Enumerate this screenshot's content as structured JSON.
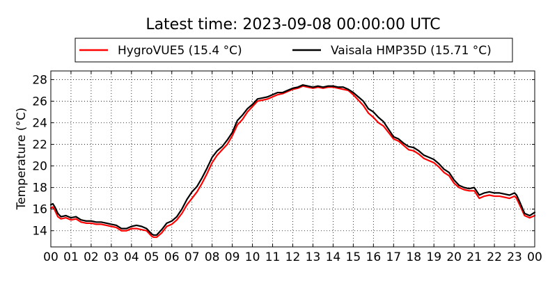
{
  "chart_data": {
    "type": "line",
    "title": "Latest time: 2023-09-08 00:00:00 UTC",
    "xlabel": "",
    "ylabel": "Temperature (°C)",
    "xlim": [
      0,
      24
    ],
    "ylim": [
      12.5,
      28.8
    ],
    "xticks": [
      0,
      1,
      2,
      3,
      4,
      5,
      6,
      7,
      8,
      9,
      10,
      11,
      12,
      13,
      14,
      15,
      16,
      17,
      18,
      19,
      20,
      21,
      22,
      23,
      24
    ],
    "xtick_labels": [
      "00",
      "01",
      "02",
      "03",
      "04",
      "05",
      "06",
      "07",
      "08",
      "09",
      "10",
      "11",
      "12",
      "13",
      "14",
      "15",
      "16",
      "17",
      "18",
      "19",
      "20",
      "21",
      "22",
      "23",
      "00"
    ],
    "yticks": [
      14,
      16,
      18,
      20,
      22,
      24,
      26,
      28
    ],
    "grid": true,
    "legend_position": "top",
    "series": [
      {
        "name": "HygroVUE5 (15.4 °C)",
        "color": "#ff0000",
        "x": [
          0,
          0.1,
          0.2,
          0.35,
          0.5,
          0.75,
          1,
          1.25,
          1.5,
          1.75,
          2,
          2.25,
          2.5,
          2.75,
          3,
          3.25,
          3.5,
          3.75,
          4,
          4.25,
          4.5,
          4.75,
          5,
          5.1,
          5.25,
          5.5,
          5.75,
          6,
          6.25,
          6.5,
          6.75,
          7,
          7.25,
          7.5,
          7.75,
          8,
          8.25,
          8.5,
          8.75,
          9,
          9.25,
          9.5,
          9.75,
          10,
          10.25,
          10.5,
          10.75,
          11,
          11.25,
          11.5,
          11.75,
          12,
          12.25,
          12.5,
          12.75,
          13,
          13.25,
          13.5,
          13.75,
          14,
          14.25,
          14.5,
          14.75,
          15,
          15.25,
          15.5,
          15.75,
          16,
          16.25,
          16.5,
          16.75,
          17,
          17.25,
          17.5,
          17.75,
          18,
          18.25,
          18.5,
          18.75,
          19,
          19.25,
          19.5,
          19.75,
          20,
          20.25,
          20.5,
          20.75,
          21,
          21.25,
          21.5,
          21.75,
          22,
          22.25,
          22.5,
          22.75,
          23,
          23.1,
          23.25,
          23.5,
          23.75,
          24
        ],
        "y": [
          16.1,
          16.2,
          15.9,
          15.3,
          15.1,
          15.2,
          15.0,
          15.1,
          14.8,
          14.7,
          14.7,
          14.6,
          14.6,
          14.5,
          14.4,
          14.3,
          14.0,
          14.0,
          14.2,
          14.2,
          14.1,
          14.0,
          13.5,
          13.4,
          13.4,
          13.8,
          14.4,
          14.6,
          15.0,
          15.6,
          16.4,
          17.0,
          17.6,
          18.4,
          19.3,
          20.3,
          21.0,
          21.5,
          22.0,
          22.8,
          23.8,
          24.3,
          25.0,
          25.5,
          26.0,
          26.1,
          26.2,
          26.4,
          26.6,
          26.7,
          26.9,
          27.1,
          27.2,
          27.4,
          27.3,
          27.2,
          27.3,
          27.2,
          27.3,
          27.3,
          27.2,
          27.1,
          27.0,
          26.6,
          26.1,
          25.6,
          24.9,
          24.5,
          24.0,
          23.7,
          23.1,
          22.5,
          22.3,
          21.9,
          21.5,
          21.4,
          21.1,
          20.7,
          20.5,
          20.3,
          19.9,
          19.4,
          19.1,
          18.4,
          18.0,
          17.8,
          17.7,
          17.7,
          17.0,
          17.2,
          17.3,
          17.2,
          17.2,
          17.1,
          17.0,
          17.2,
          17.0,
          16.4,
          15.4,
          15.2,
          15.4
        ]
      },
      {
        "name": "Vaisala HMP35D (15.71 °C)",
        "color": "#000000",
        "x": [
          0,
          0.1,
          0.2,
          0.35,
          0.5,
          0.75,
          1,
          1.25,
          1.5,
          1.75,
          2,
          2.25,
          2.5,
          2.75,
          3,
          3.25,
          3.5,
          3.75,
          4,
          4.25,
          4.5,
          4.75,
          5,
          5.1,
          5.25,
          5.5,
          5.75,
          6,
          6.25,
          6.5,
          6.75,
          7,
          7.25,
          7.5,
          7.75,
          8,
          8.25,
          8.5,
          8.75,
          9,
          9.25,
          9.5,
          9.75,
          10,
          10.25,
          10.5,
          10.75,
          11,
          11.25,
          11.5,
          11.75,
          12,
          12.25,
          12.5,
          12.75,
          13,
          13.25,
          13.5,
          13.75,
          14,
          14.25,
          14.5,
          14.75,
          15,
          15.25,
          15.5,
          15.75,
          16,
          16.25,
          16.5,
          16.75,
          17,
          17.25,
          17.5,
          17.75,
          18,
          18.25,
          18.5,
          18.75,
          19,
          19.25,
          19.5,
          19.75,
          20,
          20.25,
          20.5,
          20.75,
          21,
          21.25,
          21.5,
          21.75,
          22,
          22.25,
          22.5,
          22.75,
          23,
          23.1,
          23.25,
          23.5,
          23.75,
          24
        ],
        "y": [
          16.4,
          16.5,
          16.2,
          15.6,
          15.3,
          15.4,
          15.2,
          15.3,
          15.0,
          14.9,
          14.9,
          14.8,
          14.8,
          14.7,
          14.6,
          14.5,
          14.2,
          14.2,
          14.4,
          14.5,
          14.4,
          14.2,
          13.7,
          13.6,
          13.6,
          14.1,
          14.7,
          14.9,
          15.3,
          16.0,
          16.9,
          17.6,
          18.1,
          18.9,
          19.8,
          20.8,
          21.4,
          21.8,
          22.4,
          23.1,
          24.2,
          24.7,
          25.3,
          25.7,
          26.2,
          26.3,
          26.4,
          26.6,
          26.8,
          26.8,
          27.0,
          27.2,
          27.3,
          27.5,
          27.4,
          27.3,
          27.4,
          27.3,
          27.4,
          27.4,
          27.3,
          27.3,
          27.1,
          26.8,
          26.4,
          26.0,
          25.3,
          25.0,
          24.5,
          24.1,
          23.4,
          22.7,
          22.5,
          22.1,
          21.8,
          21.7,
          21.4,
          21.0,
          20.8,
          20.6,
          20.2,
          19.7,
          19.4,
          18.7,
          18.2,
          18.0,
          17.9,
          18.0,
          17.3,
          17.5,
          17.6,
          17.5,
          17.5,
          17.4,
          17.3,
          17.5,
          17.3,
          16.7,
          15.6,
          15.4,
          15.7
        ]
      }
    ]
  }
}
